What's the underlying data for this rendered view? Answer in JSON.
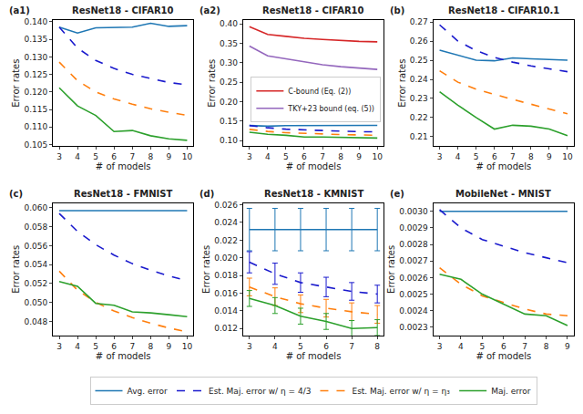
{
  "chart_data": [
    {
      "type": "line",
      "panel_label": "(a1)",
      "title": "ResNet18 - CIFAR10",
      "xlabel": "# of models",
      "ylabel": "Error rates",
      "legend": "bottom",
      "grid": false,
      "x": [
        3,
        4,
        5,
        6,
        7,
        8,
        9,
        10
      ],
      "xlim": [
        2.65,
        10.35
      ],
      "xticks": [
        3,
        4,
        5,
        6,
        7,
        8,
        9,
        10
      ],
      "ylim": [
        0.1045,
        0.1405
      ],
      "yticks": [
        0.105,
        {
          "value": 0.11,
          "label": "0.110"
        },
        0.115,
        {
          "value": 0.12,
          "label": "0.120"
        },
        0.125,
        {
          "value": 0.13,
          "label": "0.130"
        },
        0.135,
        {
          "value": 0.14,
          "label": "0.140"
        }
      ],
      "series": [
        {
          "name": "Avg. error",
          "color": "#1f77b4",
          "line_style": "solid",
          "values": [
            0.1385,
            0.1368,
            0.1383,
            0.1384,
            0.1385,
            0.1396,
            0.1387,
            0.1389
          ]
        },
        {
          "name": "Est. Maj. error w/ η = 4/3",
          "color": "#1a1acd",
          "line_style": "dashed",
          "values": [
            0.1385,
            0.1325,
            0.129,
            0.1267,
            0.125,
            0.1238,
            0.1227,
            0.122
          ]
        },
        {
          "name": "Est. Maj. error w/ η = η₃",
          "color": "#ff7f0e",
          "line_style": "dashed",
          "values": [
            0.1285,
            0.1232,
            0.12,
            0.118,
            0.1165,
            0.1152,
            0.1142,
            0.1133
          ]
        },
        {
          "name": "Maj. error",
          "color": "#2ca02c",
          "line_style": "solid",
          "values": [
            0.1212,
            0.116,
            0.1133,
            0.1087,
            0.109,
            0.1075,
            0.1066,
            0.1062
          ]
        }
      ]
    },
    {
      "type": "line",
      "panel_label": "(a2)",
      "title": "ResNet18 - CIFAR10",
      "xlabel": "# of models",
      "ylabel": "Error rates",
      "legend": "right",
      "grid": false,
      "x": [
        3,
        4,
        5,
        6,
        7,
        8,
        9,
        10
      ],
      "xlim": [
        2.65,
        10.35
      ],
      "xticks": [
        3,
        4,
        5,
        6,
        7,
        8,
        9,
        10
      ],
      "ylim": [
        0.085,
        0.41
      ],
      "yticks": [
        {
          "value": 0.1,
          "label": "0.10"
        },
        0.15,
        {
          "value": 0.2,
          "label": "0.20"
        },
        0.25,
        {
          "value": 0.3,
          "label": "0.30"
        },
        0.35,
        {
          "value": 0.4,
          "label": "0.40"
        }
      ],
      "series": [
        {
          "name": "C-bound (Eq. (2))",
          "color": "#d62728",
          "line_style": "solid",
          "values": [
            0.393,
            0.373,
            0.368,
            0.363,
            0.36,
            0.357,
            0.355,
            0.354
          ]
        },
        {
          "name": "TKY+23 bound (eq. (5))",
          "color": "#9467bd",
          "line_style": "solid",
          "values": [
            0.343,
            0.318,
            0.31,
            0.302,
            0.295,
            0.29,
            0.286,
            0.283
          ]
        },
        {
          "name": "Avg. error",
          "color": "#1f77b4",
          "line_style": "solid",
          "values": [
            0.1385,
            0.1368,
            0.1383,
            0.1384,
            0.1385,
            0.1396,
            0.1387,
            0.1389
          ]
        },
        {
          "name": "Est. Maj. error w/ η = 4/3",
          "color": "#1a1acd",
          "line_style": "dashed",
          "values": [
            0.1385,
            0.1325,
            0.129,
            0.1267,
            0.125,
            0.1238,
            0.1227,
            0.122
          ]
        },
        {
          "name": "Est. Maj. error w/ η = η₃",
          "color": "#ff7f0e",
          "line_style": "dashed",
          "values": [
            0.1285,
            0.1232,
            0.12,
            0.118,
            0.1165,
            0.1152,
            0.1142,
            0.1133
          ]
        },
        {
          "name": "Maj. error",
          "color": "#2ca02c",
          "line_style": "solid",
          "values": [
            0.1212,
            0.116,
            0.1133,
            0.1087,
            0.109,
            0.1075,
            0.1066,
            0.1062
          ]
        }
      ]
    },
    {
      "type": "line",
      "panel_label": "(b)",
      "title": "ResNet18 - CIFAR10.1",
      "xlabel": "# of models",
      "ylabel": "Error rates",
      "grid": false,
      "x": [
        3,
        4,
        5,
        6,
        7,
        8,
        9,
        10
      ],
      "xlim": [
        2.65,
        10.35
      ],
      "xticks": [
        3,
        4,
        5,
        6,
        7,
        8,
        9,
        10
      ],
      "ylim": [
        0.205,
        0.271
      ],
      "yticks": [
        0.21,
        0.22,
        0.23,
        0.24,
        0.25,
        0.26,
        0.27
      ],
      "series": [
        {
          "name": "Avg. error",
          "color": "#1f77b4",
          "line_style": "solid",
          "values": [
            0.2553,
            0.2528,
            0.25,
            0.2497,
            0.2512,
            0.2507,
            0.2502,
            0.25
          ]
        },
        {
          "name": "Est. Maj. error w/ η = 4/3",
          "color": "#1a1acd",
          "line_style": "dashed",
          "values": [
            0.2685,
            0.26,
            0.255,
            0.2515,
            0.249,
            0.247,
            0.2455,
            0.244
          ]
        },
        {
          "name": "Est. Maj. error w/ η = η₃",
          "color": "#ff7f0e",
          "line_style": "dashed",
          "values": [
            0.2445,
            0.2385,
            0.2348,
            0.232,
            0.2295,
            0.227,
            0.2245,
            0.222
          ]
        },
        {
          "name": "Maj. error",
          "color": "#2ca02c",
          "line_style": "solid",
          "values": [
            0.2335,
            0.2265,
            0.22,
            0.214,
            0.216,
            0.2155,
            0.214,
            0.2105
          ]
        }
      ]
    },
    {
      "type": "line",
      "panel_label": "(c)",
      "title": "ResNet18 - FMNIST",
      "xlabel": "# of models",
      "ylabel": "Error rates",
      "grid": false,
      "x": [
        3,
        4,
        5,
        6,
        7,
        8,
        9,
        10
      ],
      "xlim": [
        2.65,
        10.35
      ],
      "xticks": [
        3,
        4,
        5,
        6,
        7,
        8,
        9,
        10
      ],
      "ylim": [
        0.0465,
        0.0605
      ],
      "yticks": [
        0.048,
        {
          "value": 0.05,
          "label": "0.050"
        },
        0.052,
        0.054,
        0.056,
        0.058,
        {
          "value": 0.06,
          "label": "0.060"
        }
      ],
      "series": [
        {
          "name": "Avg. error",
          "color": "#1f77b4",
          "line_style": "solid",
          "values": [
            0.0597,
            0.0597,
            0.0597,
            0.0597,
            0.0597,
            0.0597,
            0.0597,
            0.0597
          ]
        },
        {
          "name": "Est. Maj. error w/ η = 4/3",
          "color": "#1a1acd",
          "line_style": "dashed",
          "values": [
            0.0594,
            0.0575,
            0.0561,
            0.055,
            0.0541,
            0.0534,
            0.0528,
            0.0523
          ]
        },
        {
          "name": "Est. Maj. error w/ η = η₃",
          "color": "#ff7f0e",
          "line_style": "dashed",
          "values": [
            0.0533,
            0.0513,
            0.05,
            0.0491,
            0.0484,
            0.0478,
            0.0473,
            0.0469
          ]
        },
        {
          "name": "Maj. error",
          "color": "#2ca02c",
          "line_style": "solid",
          "values": [
            0.0522,
            0.0517,
            0.0499,
            0.0497,
            0.049,
            0.0489,
            0.0487,
            0.0485
          ]
        }
      ]
    },
    {
      "type": "line",
      "panel_label": "(d)",
      "title": "ResNet18 - KMNIST",
      "xlabel": "# of models",
      "ylabel": "Error rates",
      "grid": false,
      "x": [
        3,
        4,
        5,
        6,
        7,
        8
      ],
      "xlim": [
        2.75,
        8.25
      ],
      "xticks": [
        3,
        4,
        5,
        6,
        7,
        8
      ],
      "ylim": [
        0.0112,
        0.0262
      ],
      "yticks": [
        0.012,
        0.014,
        0.016,
        0.018,
        {
          "value": 0.02,
          "label": "0.020"
        },
        0.022,
        0.024,
        0.026
      ],
      "series": [
        {
          "name": "Avg. error",
          "color": "#1f77b4",
          "line_style": "solid",
          "values": [
            0.0232,
            0.0232,
            0.0232,
            0.0232,
            0.0232,
            0.0232
          ],
          "errors": [
            0.0024,
            0.0024,
            0.0024,
            0.0024,
            0.0024,
            0.0024
          ]
        },
        {
          "name": "Est. Maj. error w/ η = 4/3",
          "color": "#1a1acd",
          "line_style": "dashed",
          "values": [
            0.0195,
            0.0182,
            0.0172,
            0.0167,
            0.0162,
            0.0159
          ],
          "errors": [
            0.0012,
            0.0012,
            0.0011,
            0.0011,
            0.001,
            0.001
          ]
        },
        {
          "name": "Est. Maj. error w/ η = η₃",
          "color": "#ff7f0e",
          "line_style": "dashed",
          "values": [
            0.0167,
            0.0156,
            0.0148,
            0.0143,
            0.0139,
            0.0136
          ],
          "errors": [
            0.001,
            0.001,
            0.001,
            0.001,
            0.001,
            0.001
          ]
        },
        {
          "name": "Maj. error",
          "color": "#2ca02c",
          "line_style": "solid",
          "values": [
            0.0154,
            0.0146,
            0.0134,
            0.0128,
            0.012,
            0.0121
          ],
          "errors": [
            0.0009,
            0.0009,
            0.0009,
            0.0009,
            0.0009,
            0.0009
          ]
        }
      ]
    },
    {
      "type": "line",
      "panel_label": "(e)",
      "title": "MobileNet - MNIST",
      "xlabel": "# of models",
      "ylabel": "Error rates",
      "grid": false,
      "x": [
        3,
        4,
        5,
        6,
        7,
        8,
        9
      ],
      "xlim": [
        2.7,
        9.3
      ],
      "xticks": [
        3,
        4,
        5,
        6,
        7,
        8,
        9
      ],
      "ylim": [
        0.00225,
        0.00305
      ],
      "yticks": [
        0.0023,
        0.0024,
        0.0025,
        0.0026,
        0.0027,
        0.0028,
        0.0029,
        {
          "value": 0.003,
          "label": "0.0030"
        }
      ],
      "series": [
        {
          "name": "Avg. error",
          "color": "#1f77b4",
          "line_style": "solid",
          "values": [
            0.003,
            0.003,
            0.003,
            0.003,
            0.003,
            0.003,
            0.003
          ]
        },
        {
          "name": "Est. Maj. error w/ η = 4/3",
          "color": "#1a1acd",
          "line_style": "dashed",
          "values": [
            0.00301,
            0.0029,
            0.00283,
            0.00279,
            0.00275,
            0.00272,
            0.00269
          ]
        },
        {
          "name": "Est. Maj. error w/ η = η₃",
          "color": "#ff7f0e",
          "line_style": "dashed",
          "values": [
            0.00266,
            0.00256,
            0.00249,
            0.00245,
            0.00241,
            0.00238,
            0.00237
          ]
        },
        {
          "name": "Maj. error",
          "color": "#2ca02c",
          "line_style": "solid",
          "values": [
            0.00262,
            0.00259,
            0.0025,
            0.00244,
            0.00238,
            0.00237,
            0.00231
          ]
        }
      ]
    }
  ]
}
